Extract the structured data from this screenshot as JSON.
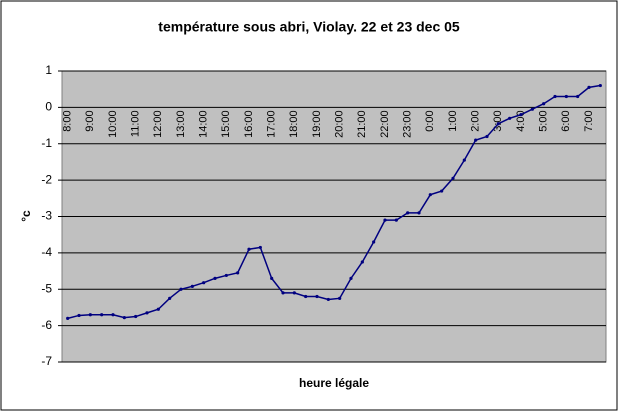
{
  "chart_data": {
    "type": "line",
    "title": "température sous abri, Violay. 22 et 23 dec 05",
    "x_label": "heure légale",
    "y_label": "°c",
    "categories": [
      "8:00",
      null,
      "9:00",
      null,
      "10:00",
      null,
      "11:00",
      null,
      "12:00",
      null,
      "13:00",
      null,
      "14:00",
      null,
      "15:00",
      null,
      "16:00",
      null,
      "17:00",
      null,
      "18:00",
      null,
      "19:00",
      null,
      "20:00",
      null,
      "21:00",
      null,
      "22:00",
      null,
      "23:00",
      null,
      "0:00",
      null,
      "1:00",
      null,
      "2:00",
      null,
      "3:00",
      null,
      "4:00",
      null,
      "5:00",
      null,
      "6:00",
      null,
      "7:00",
      null
    ],
    "series": [
      {
        "color": "#000080",
        "values": [
          -5.8,
          -5.72,
          -5.7,
          -5.7,
          -5.7,
          -5.78,
          -5.75,
          -5.65,
          -5.55,
          -5.25,
          -5.0,
          -4.92,
          -4.82,
          -4.7,
          -4.62,
          -4.55,
          -3.9,
          -3.85,
          -4.7,
          -5.1,
          -5.1,
          -5.2,
          -5.2,
          -5.28,
          -5.25,
          -4.7,
          -4.25,
          -3.7,
          -3.1,
          -3.1,
          -2.9,
          -2.9,
          -2.4,
          -2.3,
          -1.95,
          -1.45,
          -0.9,
          -0.8,
          -0.45,
          -0.3,
          -0.2,
          -0.05,
          0.1,
          0.3,
          0.3,
          0.3,
          0.55,
          0.6
        ]
      }
    ],
    "ylim": [
      -7,
      1
    ],
    "yticks": [
      -7,
      -6,
      -5,
      -4,
      -3,
      -2,
      -1,
      0,
      1
    ],
    "grid": true
  }
}
